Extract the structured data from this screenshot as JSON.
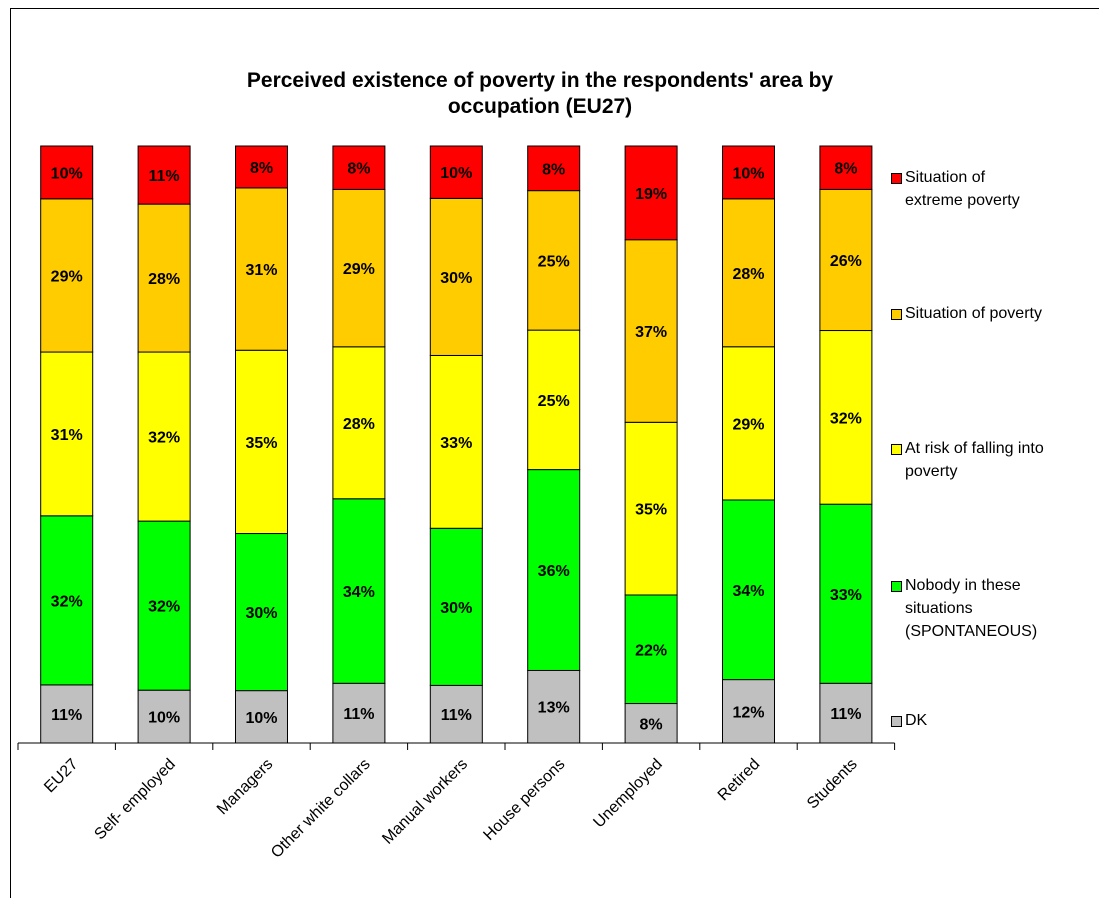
{
  "chart_data": {
    "type": "bar",
    "stack": "percent",
    "title": "Perceived existence of poverty in the respondents' area by occupation (EU27)",
    "categories": [
      "EU27",
      "Self- employed",
      "Managers",
      "Other white collars",
      "Manual workers",
      "House persons",
      "Unemployed",
      "Retired",
      "Students"
    ],
    "series": [
      {
        "name": "DK",
        "color": "#c0c0c0",
        "values": [
          11,
          10,
          10,
          11,
          11,
          13,
          8,
          12,
          11
        ],
        "value_labels": [
          "11%",
          "10%",
          "10%",
          "11%",
          "11%",
          "13%",
          "8%",
          "12%",
          "11%"
        ]
      },
      {
        "name": "Nobody in these situations (SPONTANEOUS)",
        "color": "#00ff00",
        "values": [
          32,
          32,
          30,
          34,
          30,
          36,
          22,
          34,
          33
        ],
        "value_labels": [
          "32%",
          "32%",
          "30%",
          "34%",
          "30%",
          "36%",
          "22%",
          "34%",
          "33%"
        ]
      },
      {
        "name": "At risk of falling into poverty",
        "color": "#ffff00",
        "values": [
          31,
          32,
          35,
          28,
          33,
          25,
          35,
          29,
          32
        ],
        "value_labels": [
          "31%",
          "32%",
          "35%",
          "28%",
          "33%",
          "25%",
          "35%",
          "29%",
          "32%"
        ]
      },
      {
        "name": "Situation of poverty",
        "color": "#ffcc00",
        "values": [
          29,
          28,
          31,
          29,
          30,
          25,
          37,
          28,
          26
        ],
        "value_labels": [
          "29%",
          "28%",
          "31%",
          "29%",
          "30%",
          "25%",
          "37%",
          "28%",
          "26%"
        ]
      },
      {
        "name": "Situation of extreme poverty",
        "color": "#ff0000",
        "values": [
          10,
          11,
          8,
          8,
          10,
          8,
          19,
          10,
          8
        ],
        "value_labels": [
          "10%",
          "11%",
          "8%",
          "8%",
          "10%",
          "8%",
          "19%",
          "10%",
          "8%"
        ]
      }
    ]
  }
}
